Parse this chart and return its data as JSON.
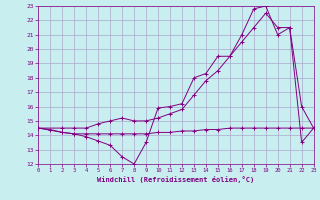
{
  "xlabel": "Windchill (Refroidissement éolien,°C)",
  "xlim": [
    0,
    23
  ],
  "ylim": [
    12,
    23
  ],
  "xticks": [
    0,
    1,
    2,
    3,
    4,
    5,
    6,
    7,
    8,
    9,
    10,
    11,
    12,
    13,
    14,
    15,
    16,
    17,
    18,
    19,
    20,
    21,
    22,
    23
  ],
  "yticks": [
    12,
    13,
    14,
    15,
    16,
    17,
    18,
    19,
    20,
    21,
    22,
    23
  ],
  "bg_color": "#c8eef0",
  "grid_color": "#aaaacc",
  "line_color": "#800080",
  "line1_x": [
    0,
    1,
    2,
    3,
    4,
    5,
    6,
    7,
    8,
    9,
    10,
    11,
    12,
    13,
    14,
    15,
    16,
    17,
    18,
    19,
    20,
    21,
    22,
    23
  ],
  "line1_y": [
    14.5,
    14.4,
    14.2,
    14.1,
    14.1,
    14.1,
    14.1,
    14.1,
    14.1,
    14.1,
    14.2,
    14.2,
    14.3,
    14.3,
    14.4,
    14.4,
    14.5,
    14.5,
    14.5,
    14.5,
    14.5,
    14.5,
    14.5,
    14.5
  ],
  "line2_x": [
    0,
    2,
    3,
    4,
    5,
    6,
    7,
    8,
    9,
    10,
    11,
    12,
    13,
    14,
    15,
    16,
    17,
    18,
    19,
    20,
    21,
    22,
    23
  ],
  "line2_y": [
    14.5,
    14.2,
    14.1,
    13.9,
    13.6,
    13.3,
    12.5,
    12.0,
    13.5,
    15.9,
    16.0,
    16.2,
    18.0,
    18.3,
    19.5,
    19.5,
    21.0,
    22.8,
    23.0,
    21.0,
    21.5,
    13.5,
    14.5
  ],
  "line3_x": [
    0,
    2,
    3,
    4,
    5,
    6,
    7,
    8,
    9,
    10,
    11,
    12,
    13,
    14,
    15,
    16,
    17,
    18,
    19,
    20,
    21,
    22,
    23
  ],
  "line3_y": [
    14.5,
    14.5,
    14.5,
    14.5,
    14.8,
    15.0,
    15.2,
    15.0,
    15.0,
    15.2,
    15.5,
    15.8,
    16.8,
    17.8,
    18.5,
    19.5,
    20.5,
    21.5,
    22.5,
    21.5,
    21.5,
    16.0,
    14.5
  ]
}
